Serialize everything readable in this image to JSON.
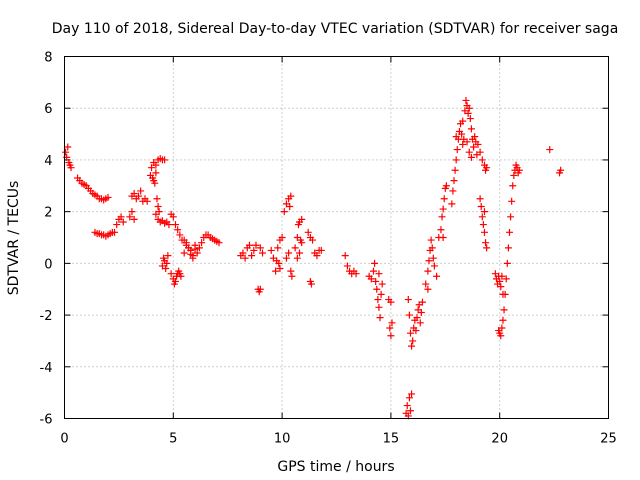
{
  "chart_data": {
    "type": "scatter",
    "title": "Day 110 of 2018, Sidereal Day-to-day VTEC variation (SDTVAR) for receiver saga",
    "xlabel": "GPS time / hours",
    "ylabel": "SDTVAR / TECUs",
    "xlim": [
      0,
      25
    ],
    "ylim": [
      -6,
      8
    ],
    "xticks": [
      0,
      5,
      10,
      15,
      20,
      25
    ],
    "yticks": [
      -6,
      -4,
      -2,
      0,
      2,
      4,
      6,
      8
    ],
    "grid": true,
    "marker": "plus",
    "color": "#ff0000",
    "series": [
      {
        "values": [
          [
            0.05,
            4.3
          ],
          [
            0.1,
            4.1
          ],
          [
            0.15,
            4.5
          ],
          [
            0.2,
            3.9
          ],
          [
            0.25,
            3.8
          ],
          [
            0.3,
            3.7
          ],
          [
            0.6,
            3.3
          ],
          [
            0.7,
            3.2
          ],
          [
            0.8,
            3.1
          ],
          [
            0.9,
            3.05
          ],
          [
            1.0,
            3.0
          ],
          [
            1.1,
            2.9
          ],
          [
            1.2,
            2.8
          ],
          [
            1.3,
            2.7
          ],
          [
            1.4,
            2.65
          ],
          [
            1.5,
            2.6
          ],
          [
            1.6,
            2.5
          ],
          [
            1.7,
            2.5
          ],
          [
            1.8,
            2.45
          ],
          [
            1.9,
            2.5
          ],
          [
            2.0,
            2.55
          ],
          [
            1.4,
            1.2
          ],
          [
            1.5,
            1.15
          ],
          [
            1.6,
            1.15
          ],
          [
            1.7,
            1.1
          ],
          [
            1.8,
            1.1
          ],
          [
            1.9,
            1.05
          ],
          [
            2.0,
            1.1
          ],
          [
            2.1,
            1.15
          ],
          [
            2.2,
            1.2
          ],
          [
            2.3,
            1.2
          ],
          [
            2.4,
            1.5
          ],
          [
            2.5,
            1.7
          ],
          [
            2.6,
            1.8
          ],
          [
            2.7,
            1.6
          ],
          [
            3.0,
            1.8
          ],
          [
            3.1,
            2.0
          ],
          [
            3.2,
            1.7
          ],
          [
            3.3,
            2.5
          ],
          [
            3.1,
            2.6
          ],
          [
            3.2,
            2.7
          ],
          [
            3.4,
            2.6
          ],
          [
            3.5,
            2.8
          ],
          [
            3.6,
            2.4
          ],
          [
            3.7,
            2.5
          ],
          [
            3.8,
            2.4
          ],
          [
            3.95,
            3.4
          ],
          [
            4.0,
            3.7
          ],
          [
            4.1,
            3.9
          ],
          [
            4.2,
            3.8
          ],
          [
            4.3,
            4.0
          ],
          [
            4.4,
            4.05
          ],
          [
            4.5,
            4.0
          ],
          [
            4.6,
            4.0
          ],
          [
            4.05,
            3.3
          ],
          [
            4.1,
            3.2
          ],
          [
            4.15,
            3.1
          ],
          [
            4.2,
            3.5
          ],
          [
            4.25,
            2.5
          ],
          [
            4.3,
            2.2
          ],
          [
            4.35,
            2.0
          ],
          [
            4.2,
            1.9
          ],
          [
            4.3,
            1.7
          ],
          [
            4.4,
            1.6
          ],
          [
            4.5,
            1.65
          ],
          [
            4.6,
            1.55
          ],
          [
            4.7,
            1.6
          ],
          [
            4.8,
            1.5
          ],
          [
            4.9,
            1.9
          ],
          [
            5.0,
            1.8
          ],
          [
            5.1,
            1.5
          ],
          [
            5.2,
            1.3
          ],
          [
            5.3,
            1.1
          ],
          [
            5.4,
            0.9
          ],
          [
            4.5,
            -0.1
          ],
          [
            4.55,
            0.2
          ],
          [
            4.6,
            0.1
          ],
          [
            4.65,
            -0.2
          ],
          [
            4.7,
            0.0
          ],
          [
            4.75,
            0.3
          ],
          [
            4.9,
            -0.4
          ],
          [
            5.0,
            -0.6
          ],
          [
            5.05,
            -0.8
          ],
          [
            5.1,
            -0.7
          ],
          [
            5.15,
            -0.5
          ],
          [
            5.2,
            -0.4
          ],
          [
            5.25,
            -0.3
          ],
          [
            5.3,
            -0.4
          ],
          [
            5.35,
            -0.5
          ],
          [
            5.5,
            0.4
          ],
          [
            5.6,
            0.7
          ],
          [
            5.7,
            0.6
          ],
          [
            5.8,
            0.5
          ],
          [
            5.9,
            0.3
          ],
          [
            6.0,
            0.7
          ],
          [
            6.1,
            0.4
          ],
          [
            6.2,
            0.6
          ],
          [
            6.3,
            0.8
          ],
          [
            6.4,
            1.0
          ],
          [
            6.5,
            1.1
          ],
          [
            6.6,
            1.1
          ],
          [
            6.7,
            1.0
          ],
          [
            6.8,
            0.95
          ],
          [
            6.9,
            0.9
          ],
          [
            7.0,
            0.85
          ],
          [
            7.1,
            0.8
          ],
          [
            5.5,
            0.9
          ],
          [
            5.6,
            0.8
          ],
          [
            5.7,
            0.6
          ],
          [
            5.8,
            0.35
          ],
          [
            5.9,
            0.2
          ],
          [
            6.0,
            0.55
          ],
          [
            8.1,
            0.3
          ],
          [
            8.2,
            0.4
          ],
          [
            8.3,
            0.2
          ],
          [
            8.4,
            0.6
          ],
          [
            8.5,
            0.7
          ],
          [
            8.6,
            0.3
          ],
          [
            8.7,
            0.5
          ],
          [
            8.8,
            0.7
          ],
          [
            9.0,
            0.6
          ],
          [
            9.1,
            0.4
          ],
          [
            8.9,
            -1.0
          ],
          [
            8.95,
            -1.1
          ],
          [
            9.0,
            -1.0
          ],
          [
            9.5,
            0.5
          ],
          [
            9.6,
            0.2
          ],
          [
            9.7,
            -0.3
          ],
          [
            9.75,
            0.1
          ],
          [
            9.8,
            0.6
          ],
          [
            9.9,
            0.9
          ],
          [
            10.0,
            1.0
          ],
          [
            9.85,
            0.0
          ],
          [
            9.9,
            -0.2
          ],
          [
            10.1,
            2.0
          ],
          [
            10.2,
            2.3
          ],
          [
            10.3,
            2.5
          ],
          [
            10.4,
            2.6
          ],
          [
            10.35,
            2.2
          ],
          [
            10.2,
            0.2
          ],
          [
            10.3,
            0.4
          ],
          [
            10.4,
            -0.3
          ],
          [
            10.45,
            -0.5
          ],
          [
            10.6,
            0.6
          ],
          [
            10.7,
            1.0
          ],
          [
            10.75,
            1.5
          ],
          [
            10.8,
            1.6
          ],
          [
            10.9,
            1.7
          ],
          [
            10.85,
            0.9
          ],
          [
            10.9,
            0.8
          ],
          [
            10.7,
            0.2
          ],
          [
            10.8,
            0.4
          ],
          [
            11.2,
            1.2
          ],
          [
            11.3,
            1.0
          ],
          [
            11.4,
            0.9
          ],
          [
            11.5,
            0.4
          ],
          [
            11.6,
            0.3
          ],
          [
            11.7,
            0.5
          ],
          [
            11.8,
            0.5
          ],
          [
            11.3,
            -0.7
          ],
          [
            11.35,
            -0.8
          ],
          [
            12.9,
            0.3
          ],
          [
            13.0,
            -0.1
          ],
          [
            13.1,
            -0.3
          ],
          [
            13.2,
            -0.4
          ],
          [
            13.3,
            -0.3
          ],
          [
            13.4,
            -0.4
          ],
          [
            14.0,
            -0.5
          ],
          [
            14.1,
            -0.6
          ],
          [
            14.2,
            -0.3
          ],
          [
            14.25,
            0.0
          ],
          [
            14.3,
            -0.7
          ],
          [
            14.35,
            -1.0
          ],
          [
            14.4,
            -1.4
          ],
          [
            14.45,
            -1.7
          ],
          [
            14.5,
            -2.1
          ],
          [
            14.55,
            -1.2
          ],
          [
            14.6,
            -0.8
          ],
          [
            14.45,
            -0.4
          ],
          [
            14.9,
            -1.4
          ],
          [
            15.0,
            -1.5
          ],
          [
            14.95,
            -2.5
          ],
          [
            15.0,
            -2.8
          ],
          [
            15.05,
            -2.3
          ],
          [
            15.7,
            -5.8
          ],
          [
            15.75,
            -5.5
          ],
          [
            15.8,
            -5.9
          ],
          [
            15.85,
            -5.2
          ],
          [
            15.9,
            -5.7
          ],
          [
            15.95,
            -5.05
          ],
          [
            15.8,
            -1.4
          ],
          [
            15.85,
            -2.0
          ],
          [
            15.9,
            -2.7
          ],
          [
            15.95,
            -3.2
          ],
          [
            16.0,
            -3.0
          ],
          [
            16.05,
            -2.5
          ],
          [
            16.1,
            -2.2
          ],
          [
            16.15,
            -2.6
          ],
          [
            16.2,
            -2.1
          ],
          [
            16.25,
            -1.8
          ],
          [
            16.3,
            -1.6
          ],
          [
            16.35,
            -2.3
          ],
          [
            16.4,
            -1.9
          ],
          [
            16.45,
            -1.5
          ],
          [
            16.6,
            -0.8
          ],
          [
            16.7,
            -0.3
          ],
          [
            16.75,
            0.1
          ],
          [
            16.8,
            0.5
          ],
          [
            16.85,
            0.9
          ],
          [
            16.9,
            0.6
          ],
          [
            16.95,
            0.2
          ],
          [
            17.0,
            -0.1
          ],
          [
            17.1,
            -0.5
          ],
          [
            16.7,
            -1.0
          ],
          [
            17.2,
            1.0
          ],
          [
            17.3,
            1.3
          ],
          [
            17.35,
            1.8
          ],
          [
            17.4,
            2.1
          ],
          [
            17.45,
            2.5
          ],
          [
            17.5,
            2.9
          ],
          [
            17.55,
            3.0
          ],
          [
            17.4,
            1.0
          ],
          [
            17.8,
            2.3
          ],
          [
            17.85,
            2.8
          ],
          [
            17.9,
            3.2
          ],
          [
            17.95,
            3.6
          ],
          [
            18.0,
            4.0
          ],
          [
            18.05,
            4.4
          ],
          [
            18.1,
            4.8
          ],
          [
            18.15,
            5.1
          ],
          [
            18.2,
            5.4
          ],
          [
            18.25,
            5.0
          ],
          [
            18.3,
            4.6
          ],
          [
            18.35,
            4.8
          ],
          [
            18.0,
            4.9
          ],
          [
            18.3,
            5.5
          ],
          [
            18.4,
            5.9
          ],
          [
            18.45,
            6.3
          ],
          [
            18.5,
            6.1
          ],
          [
            18.55,
            5.8
          ],
          [
            18.6,
            6.0
          ],
          [
            18.65,
            5.6
          ],
          [
            18.7,
            5.2
          ],
          [
            18.75,
            4.8
          ],
          [
            18.8,
            4.5
          ],
          [
            18.85,
            4.9
          ],
          [
            18.9,
            4.7
          ],
          [
            18.95,
            4.2
          ],
          [
            18.5,
            4.7
          ],
          [
            18.6,
            4.3
          ],
          [
            18.7,
            4.1
          ],
          [
            19.0,
            4.6
          ],
          [
            19.1,
            4.3
          ],
          [
            19.2,
            4.0
          ],
          [
            19.3,
            3.8
          ],
          [
            19.35,
            3.6
          ],
          [
            19.4,
            3.7
          ],
          [
            19.1,
            2.5
          ],
          [
            19.15,
            2.2
          ],
          [
            19.2,
            1.8
          ],
          [
            19.25,
            1.5
          ],
          [
            19.3,
            1.2
          ],
          [
            19.35,
            0.8
          ],
          [
            19.4,
            0.6
          ],
          [
            19.3,
            2.0
          ],
          [
            19.8,
            -0.4
          ],
          [
            19.85,
            -0.6
          ],
          [
            19.9,
            -0.8
          ],
          [
            19.95,
            -0.5
          ],
          [
            20.0,
            -0.7
          ],
          [
            20.05,
            -0.9
          ],
          [
            20.1,
            -0.5
          ],
          [
            20.15,
            -1.2
          ],
          [
            19.95,
            -2.6
          ],
          [
            20.0,
            -2.7
          ],
          [
            20.05,
            -2.8
          ],
          [
            20.1,
            -2.5
          ],
          [
            20.15,
            -2.2
          ],
          [
            20.2,
            -1.8
          ],
          [
            20.25,
            -1.2
          ],
          [
            20.3,
            -0.6
          ],
          [
            20.35,
            0.0
          ],
          [
            20.4,
            0.6
          ],
          [
            20.45,
            1.2
          ],
          [
            20.5,
            1.8
          ],
          [
            20.55,
            2.4
          ],
          [
            20.6,
            3.0
          ],
          [
            20.65,
            3.4
          ],
          [
            20.7,
            3.6
          ],
          [
            20.75,
            3.8
          ],
          [
            20.8,
            3.7
          ],
          [
            20.85,
            3.5
          ],
          [
            20.9,
            3.6
          ],
          [
            22.3,
            4.4
          ],
          [
            22.75,
            3.5
          ],
          [
            22.8,
            3.6
          ]
        ]
      }
    ]
  }
}
